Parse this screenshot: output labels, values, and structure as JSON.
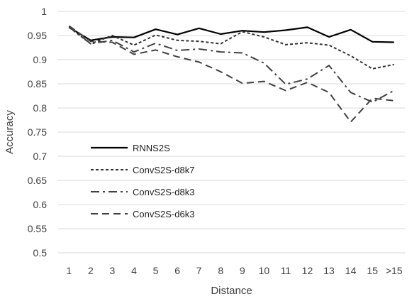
{
  "chart_data": {
    "type": "line",
    "title": "",
    "xlabel": "Distance",
    "ylabel": "Accuracy",
    "categories": [
      "1",
      "2",
      "3",
      "4",
      "5",
      "6",
      "7",
      "8",
      "9",
      "10",
      "11",
      "12",
      "13",
      "14",
      "15",
      ">15"
    ],
    "yticks": [
      "0.5",
      "0.55",
      "0.6",
      "0.65",
      "0.7",
      "0.75",
      "0.8",
      "0.85",
      "0.9",
      "0.95",
      "1"
    ],
    "ylim": [
      0.5,
      1.0
    ],
    "grid": true,
    "legend_position": "left-middle",
    "series": [
      {
        "name": "RNNS2S",
        "style": "solid",
        "color": "#000000",
        "values": [
          0.967,
          0.94,
          0.947,
          0.946,
          0.963,
          0.952,
          0.965,
          0.953,
          0.96,
          0.957,
          0.961,
          0.967,
          0.947,
          0.962,
          0.937,
          0.936
        ]
      },
      {
        "name": "ConvS2S-d8k7",
        "style": "dotted",
        "color": "#303030",
        "values": [
          0.967,
          0.933,
          0.95,
          0.93,
          0.951,
          0.94,
          0.938,
          0.933,
          0.958,
          0.947,
          0.931,
          0.935,
          0.93,
          0.908,
          0.881,
          0.89
        ]
      },
      {
        "name": "ConvS2S-d8k3",
        "style": "dashdot",
        "color": "#404040",
        "values": [
          0.969,
          0.933,
          0.94,
          0.916,
          0.934,
          0.919,
          0.922,
          0.916,
          0.914,
          0.893,
          0.849,
          0.86,
          0.888,
          0.832,
          0.812,
          0.836
        ]
      },
      {
        "name": "ConvS2S-d6k3",
        "style": "dashed",
        "color": "#404040",
        "values": [
          0.97,
          0.938,
          0.936,
          0.911,
          0.92,
          0.906,
          0.895,
          0.875,
          0.851,
          0.855,
          0.836,
          0.853,
          0.832,
          0.771,
          0.82,
          0.815
        ]
      }
    ]
  }
}
